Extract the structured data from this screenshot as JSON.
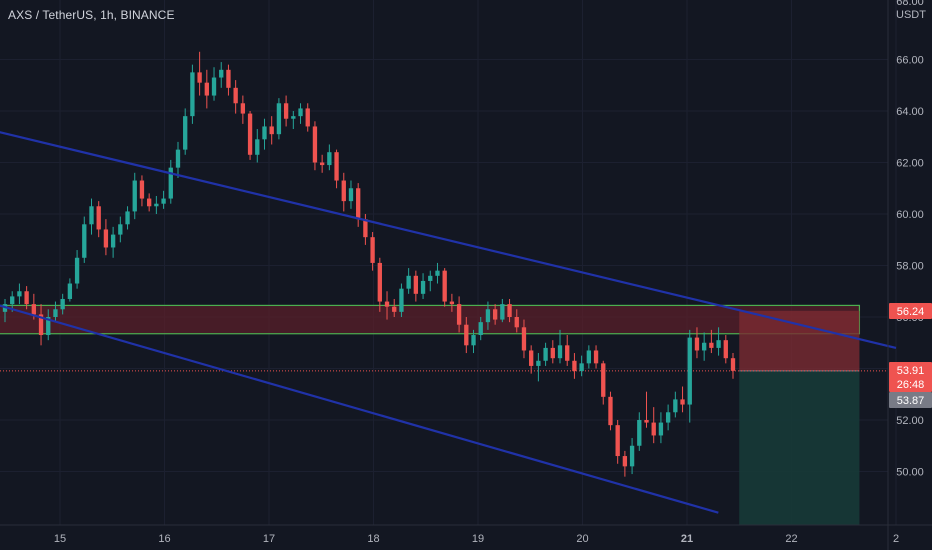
{
  "legend": {
    "title": "AXS / TetherUS, 1h, BINANCE"
  },
  "axis": {
    "currency_label": "USDT",
    "top_partial_label": "68.00"
  },
  "badges": {
    "upper_zone_price": "56.24",
    "current_price": "53.91",
    "countdown": "26:48",
    "stop_price": "53.87"
  },
  "colors": {
    "background": "#131722",
    "up": "#26a69a",
    "down": "#ef5350",
    "channel": "#2032a8",
    "zone_border": "#4caf50",
    "zone_fill": "#5a1f2a",
    "loss_fill": "#7a2a32",
    "profit_fill": "#173a37",
    "grid": "#1c2030"
  },
  "chart_data": {
    "type": "candlestick",
    "symbol": "AXS / TetherUS",
    "interval": "1h",
    "exchange": "BINANCE",
    "y_axis": {
      "min": 48.5,
      "max": 67.5,
      "ticks": [
        "50.00",
        "52.00",
        "54.00",
        "56.00",
        "58.00",
        "60.00",
        "62.00",
        "64.00",
        "66.00"
      ]
    },
    "x_axis": {
      "ticks": [
        "15",
        "16",
        "17",
        "18",
        "19",
        "20",
        "21",
        "22",
        "2"
      ]
    },
    "trend_channel": {
      "upper": [
        [
          -4.9,
          67.4
        ],
        [
          8.0,
          54.8
        ]
      ],
      "lower": [
        [
          -3.7,
          60.1
        ],
        [
          6.3,
          48.4
        ]
      ]
    },
    "resistance_zone": {
      "low": 55.35,
      "high": 56.45,
      "from_day": -5.5,
      "to_day": 7.65
    },
    "position": {
      "entry": 53.91,
      "stop": 56.24,
      "target": 48.5,
      "from_day": 6.5,
      "to_day": 7.65
    },
    "price_lines": [
      53.91
    ],
    "candles": [
      [
        56.2,
        56.7,
        55.8,
        56.5
      ],
      [
        56.5,
        57.0,
        56.2,
        56.8
      ],
      [
        56.8,
        57.3,
        56.5,
        57.0
      ],
      [
        57.0,
        57.2,
        56.3,
        56.5
      ],
      [
        56.5,
        56.9,
        55.9,
        56.1
      ],
      [
        56.1,
        56.5,
        54.9,
        55.3
      ],
      [
        55.3,
        56.3,
        55.1,
        56.0
      ],
      [
        56.0,
        56.6,
        55.8,
        56.3
      ],
      [
        56.3,
        56.9,
        56.1,
        56.7
      ],
      [
        56.7,
        57.5,
        56.6,
        57.3
      ],
      [
        57.3,
        58.6,
        57.1,
        58.3
      ],
      [
        58.3,
        59.9,
        58.1,
        59.6
      ],
      [
        59.6,
        60.6,
        59.2,
        60.3
      ],
      [
        60.3,
        60.5,
        59.1,
        59.4
      ],
      [
        59.4,
        59.8,
        58.4,
        58.7
      ],
      [
        58.7,
        59.5,
        58.3,
        59.2
      ],
      [
        59.2,
        59.9,
        58.9,
        59.6
      ],
      [
        59.6,
        60.3,
        59.4,
        60.1
      ],
      [
        60.1,
        61.6,
        59.8,
        61.3
      ],
      [
        61.3,
        61.5,
        60.3,
        60.6
      ],
      [
        60.6,
        60.8,
        60.1,
        60.3
      ],
      [
        60.3,
        60.7,
        60.0,
        60.4
      ],
      [
        60.4,
        60.9,
        60.2,
        60.6
      ],
      [
        60.6,
        62.1,
        60.4,
        61.8
      ],
      [
        61.8,
        62.8,
        61.4,
        62.5
      ],
      [
        62.5,
        64.1,
        62.3,
        63.8
      ],
      [
        63.8,
        65.8,
        63.5,
        65.5
      ],
      [
        65.5,
        66.3,
        64.6,
        65.1
      ],
      [
        65.1,
        65.6,
        64.1,
        64.6
      ],
      [
        64.6,
        65.7,
        64.4,
        65.3
      ],
      [
        65.3,
        65.9,
        64.9,
        65.6
      ],
      [
        65.6,
        65.8,
        64.6,
        64.9
      ],
      [
        64.9,
        65.2,
        63.9,
        64.3
      ],
      [
        64.3,
        64.6,
        63.5,
        63.9
      ],
      [
        63.9,
        64.0,
        62.1,
        62.3
      ],
      [
        62.3,
        63.3,
        62.0,
        62.9
      ],
      [
        62.9,
        63.7,
        62.5,
        63.4
      ],
      [
        63.4,
        63.8,
        62.7,
        63.1
      ],
      [
        63.1,
        64.5,
        62.9,
        64.3
      ],
      [
        64.3,
        64.6,
        63.4,
        63.7
      ],
      [
        63.7,
        64.0,
        63.3,
        63.8
      ],
      [
        63.8,
        64.3,
        63.5,
        64.1
      ],
      [
        64.1,
        64.3,
        63.2,
        63.4
      ],
      [
        63.4,
        63.6,
        61.7,
        62.0
      ],
      [
        62.0,
        62.3,
        61.6,
        61.9
      ],
      [
        61.9,
        62.7,
        61.7,
        62.4
      ],
      [
        62.4,
        62.5,
        61.0,
        61.3
      ],
      [
        61.3,
        61.6,
        60.1,
        60.5
      ],
      [
        60.5,
        61.3,
        60.2,
        61.0
      ],
      [
        61.0,
        61.2,
        59.5,
        59.8
      ],
      [
        59.8,
        60.0,
        58.8,
        59.1
      ],
      [
        59.1,
        59.3,
        57.8,
        58.1
      ],
      [
        58.1,
        58.3,
        56.2,
        56.6
      ],
      [
        56.6,
        57.0,
        55.9,
        56.4
      ],
      [
        56.4,
        56.7,
        56.0,
        56.2
      ],
      [
        56.2,
        57.3,
        56.0,
        57.1
      ],
      [
        57.1,
        57.9,
        56.9,
        57.6
      ],
      [
        57.6,
        57.8,
        56.6,
        56.9
      ],
      [
        56.9,
        57.7,
        56.7,
        57.4
      ],
      [
        57.4,
        57.8,
        57.0,
        57.6
      ],
      [
        57.6,
        58.1,
        57.3,
        57.8
      ],
      [
        57.8,
        57.9,
        56.4,
        56.6
      ],
      [
        56.6,
        56.9,
        56.2,
        56.5
      ],
      [
        56.5,
        56.8,
        55.4,
        55.7
      ],
      [
        55.7,
        56.0,
        54.6,
        54.9
      ],
      [
        54.9,
        55.5,
        54.6,
        55.3
      ],
      [
        55.3,
        56.0,
        55.1,
        55.8
      ],
      [
        55.8,
        56.6,
        55.5,
        56.3
      ],
      [
        56.3,
        56.5,
        55.7,
        55.9
      ],
      [
        55.9,
        56.7,
        55.8,
        56.5
      ],
      [
        56.5,
        56.7,
        55.8,
        56.0
      ],
      [
        56.0,
        56.3,
        55.4,
        55.6
      ],
      [
        55.6,
        55.9,
        54.4,
        54.7
      ],
      [
        54.7,
        54.9,
        53.8,
        54.1
      ],
      [
        54.1,
        54.6,
        53.5,
        54.3
      ],
      [
        54.3,
        55.0,
        54.1,
        54.8
      ],
      [
        54.8,
        55.1,
        54.2,
        54.4
      ],
      [
        54.4,
        55.5,
        54.2,
        54.9
      ],
      [
        54.9,
        55.3,
        54.1,
        54.3
      ],
      [
        54.3,
        54.6,
        53.6,
        53.9
      ],
      [
        53.9,
        54.5,
        53.7,
        54.2
      ],
      [
        54.2,
        54.9,
        54.0,
        54.7
      ],
      [
        54.7,
        54.9,
        54.0,
        54.2
      ],
      [
        54.2,
        54.3,
        52.6,
        52.9
      ],
      [
        52.9,
        53.1,
        51.6,
        51.8
      ],
      [
        51.8,
        52.0,
        50.3,
        50.6
      ],
      [
        50.6,
        50.8,
        49.8,
        50.2
      ],
      [
        50.2,
        51.3,
        49.9,
        51.0
      ],
      [
        51.0,
        52.3,
        50.8,
        52.0
      ],
      [
        52.0,
        53.1,
        51.7,
        51.9
      ],
      [
        51.9,
        52.5,
        51.1,
        51.4
      ],
      [
        51.4,
        52.3,
        51.1,
        51.9
      ],
      [
        51.9,
        52.6,
        51.6,
        52.3
      ],
      [
        52.3,
        53.1,
        52.1,
        52.8
      ],
      [
        52.8,
        53.3,
        52.3,
        52.6
      ],
      [
        52.6,
        55.5,
        51.9,
        55.2
      ],
      [
        55.2,
        55.6,
        54.4,
        54.7
      ],
      [
        54.7,
        55.4,
        54.3,
        55.0
      ],
      [
        55.0,
        55.5,
        54.6,
        54.8
      ],
      [
        54.8,
        55.6,
        54.5,
        55.1
      ],
      [
        55.1,
        55.3,
        54.2,
        54.4
      ],
      [
        54.4,
        54.6,
        53.6,
        53.91
      ]
    ]
  }
}
